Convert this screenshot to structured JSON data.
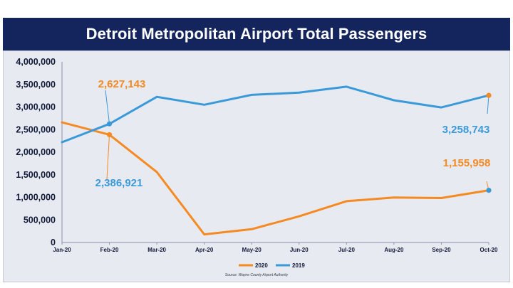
{
  "title": "Detroit Metropolitan Airport Total Passengers",
  "source_note": "Source: Wayne County Airport Authority",
  "colors": {
    "banner": "#14255e",
    "series_2020": "#f58a22",
    "series_2019": "#3a9ad9"
  },
  "chart_data": {
    "type": "line",
    "title": "Detroit Metropolitan Airport Total Passengers",
    "xlabel": "",
    "ylabel": "",
    "categories": [
      "Jan-20",
      "Feb-20",
      "Mar-20",
      "Apr-20",
      "May-20",
      "Jun-20",
      "Jul-20",
      "Aug-20",
      "Sep-20",
      "Oct-20"
    ],
    "ylim": [
      0,
      4000000
    ],
    "yticks": [
      0,
      500000,
      1000000,
      1500000,
      2000000,
      2500000,
      3000000,
      3500000,
      4000000
    ],
    "ytick_labels": [
      "0",
      "500,000",
      "1,000,000",
      "1,500,000",
      "2,000,000",
      "2,500,000",
      "3,000,000",
      "3,500,000",
      "4,000,000"
    ],
    "grid": false,
    "legend": "bottom",
    "series": [
      {
        "name": "2020",
        "color": "#f58a22",
        "values": [
          2660000,
          2386921,
          1560000,
          180000,
          295000,
          580000,
          915000,
          995000,
          985000,
          1155958
        ]
      },
      {
        "name": "2019",
        "color": "#3a9ad9",
        "values": [
          2220000,
          2627143,
          3225000,
          3050000,
          3270000,
          3320000,
          3450000,
          3150000,
          2990000,
          3258743
        ]
      }
    ],
    "annotations": [
      {
        "text": "2,627,143",
        "series": 1,
        "index": 1,
        "color": "#f58a22"
      },
      {
        "text": "2,386,921",
        "series": 0,
        "index": 1,
        "color": "#3a9ad9"
      },
      {
        "text": "3,258,743",
        "series": 1,
        "index": 9,
        "color": "#3a9ad9"
      },
      {
        "text": "1,155,958",
        "series": 0,
        "index": 9,
        "color": "#f58a22"
      }
    ]
  }
}
